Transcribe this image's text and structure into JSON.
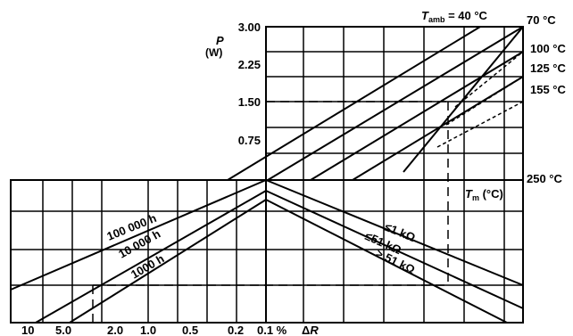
{
  "header": {
    "tamb_symbol": "T",
    "tamb_sub": "amb",
    "tamb_value": " = 40 °C"
  },
  "axis_p": {
    "symbol": "P",
    "unit": "(W)",
    "ticks": [
      "3.00",
      "2.25",
      "1.50",
      "0.75"
    ]
  },
  "axis_tm": {
    "symbol": "T",
    "sub": "m",
    "unit": " (°C)"
  },
  "temp_labels": [
    "70 °C",
    "100 °C",
    "125 °C",
    "155 °C",
    "250 °C"
  ],
  "bottom_scale": {
    "ticks": [
      "10",
      "5.0",
      "2.0",
      "1.0",
      "0.5",
      "0.2",
      "0.1 %"
    ],
    "delta": "Δ",
    "var": "R"
  },
  "life_curves": [
    "100 000 h",
    "10 000 h",
    "1000 h"
  ],
  "resistance_curves": [
    "≤1  kΩ",
    "≤51  kΩ",
    "> 51  kΩ"
  ]
}
